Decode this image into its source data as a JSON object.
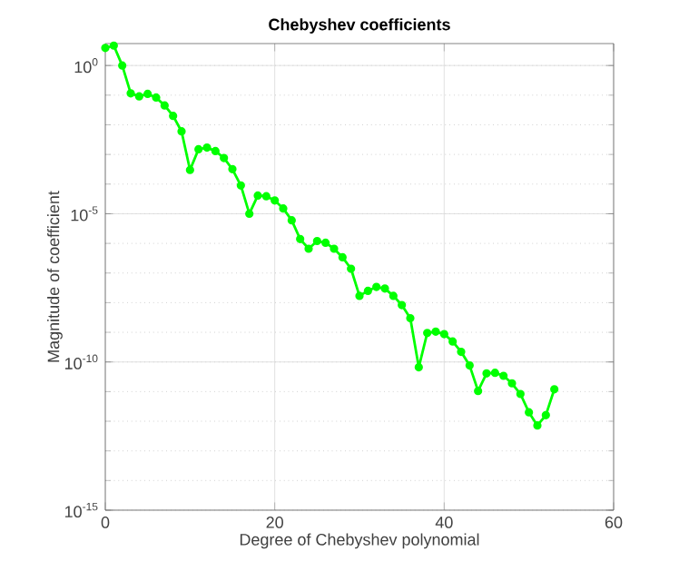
{
  "chart_data": {
    "type": "line",
    "title": "Chebyshev coefficients",
    "xlabel": "Degree of Chebyshev polynomial",
    "ylabel": "Magnitude of coefficient",
    "x": [
      0,
      1,
      2,
      3,
      4,
      5,
      6,
      7,
      8,
      9,
      10,
      11,
      12,
      13,
      14,
      15,
      16,
      17,
      18,
      19,
      20,
      21,
      22,
      23,
      24,
      25,
      26,
      27,
      28,
      29,
      30,
      31,
      32,
      33,
      34,
      35,
      36,
      37,
      38,
      39,
      40,
      41,
      42,
      43,
      44,
      45,
      46,
      47,
      48,
      49,
      50,
      51,
      52,
      53
    ],
    "series": [
      {
        "color": "#00ff00",
        "values": [
          3.9,
          4.7,
          1,
          0.115,
          0.091,
          0.11,
          0.083,
          0.045,
          0.02,
          0.006,
          0.0003,
          0.0015,
          0.0017,
          0.0013,
          0.00076,
          0.00032,
          9e-05,
          1e-05,
          4.1e-05,
          3.9e-05,
          2.8e-05,
          1.5e-05,
          6e-06,
          1.4e-06,
          6.6e-07,
          1.2e-06,
          1.05e-06,
          6.6e-07,
          3.4e-07,
          1.4e-07,
          1.7e-08,
          2.5e-08,
          3.4e-08,
          3e-08,
          1.7e-08,
          8.3e-09,
          3e-09,
          6.6e-11,
          9.5e-10,
          1.05e-09,
          8.7e-10,
          4.9e-10,
          2.2e-10,
          7.6e-11,
          1.05e-11,
          4.1e-11,
          4.3e-11,
          3.4e-11,
          1.9e-11,
          8.3e-12,
          2e-12,
          7.2e-13,
          1.6e-12,
          1.2e-11
        ]
      }
    ],
    "xlim": [
      0,
      60
    ],
    "xticks": [
      0,
      20,
      40,
      60
    ],
    "ylim": [
      1e-15,
      5.5
    ],
    "yticks": [
      {
        "value": 1e-15,
        "label": "10$^{-15}$"
      },
      {
        "value": 1e-10,
        "label": "10$^{-10}$"
      },
      {
        "value": 1e-05,
        "label": "10$^{-5}$"
      },
      {
        "value": 1,
        "label": "10$^{0}$"
      }
    ],
    "log": "y",
    "grid": true,
    "marker": "circle",
    "line_style": "solid"
  }
}
